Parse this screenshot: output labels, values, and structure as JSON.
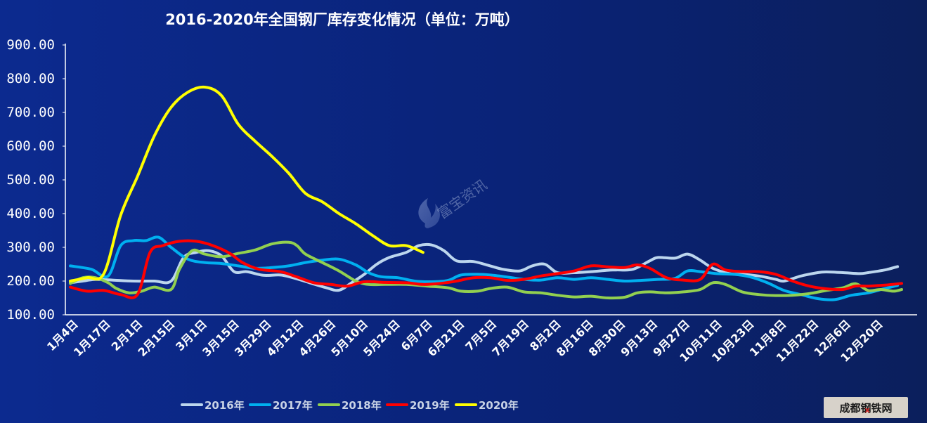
{
  "chart_data": {
    "type": "line",
    "title": "2016-2020年全国钢厂库存变化情况（单位：万吨）",
    "xlabel": "",
    "ylabel": "",
    "ylim": [
      100,
      900
    ],
    "yticks": [
      "900.00",
      "800.00",
      "700.00",
      "600.00",
      "500.00",
      "400.00",
      "300.00",
      "200.00",
      "100.00"
    ],
    "grid": false,
    "legend_position": "bottom",
    "x_tick_labels": [
      "1月4日",
      "1月17日",
      "2月1日",
      "2月15日",
      "3月1日",
      "3月15日",
      "3月29日",
      "4月12日",
      "4月26日",
      "5月10日",
      "5月24日",
      "6月7日",
      "6月21日",
      "7月5日",
      "7月19日",
      "8月2日",
      "8月16日",
      "8月30日",
      "9月13日",
      "9月27日",
      "10月11日",
      "10月23日",
      "11月8日",
      "11月22日",
      "12月6日",
      "12月20日"
    ],
    "series": [
      {
        "name": "2016年",
        "color": "#bcd6ee",
        "points": [
          [
            0,
            195
          ],
          [
            0.3,
            200
          ],
          [
            0.6,
            205
          ],
          [
            1.0,
            203
          ],
          [
            1.5,
            200
          ],
          [
            2.0,
            200
          ],
          [
            2.4,
            200
          ],
          [
            2.7,
            270
          ],
          [
            3.0,
            285
          ],
          [
            3.3,
            290
          ],
          [
            3.6,
            275
          ],
          [
            3.9,
            228
          ],
          [
            4.2,
            228
          ],
          [
            4.6,
            217
          ],
          [
            5.0,
            218
          ],
          [
            5.3,
            210
          ],
          [
            5.7,
            195
          ],
          [
            6.1,
            180
          ],
          [
            6.4,
            173
          ],
          [
            6.7,
            195
          ],
          [
            7.0,
            220
          ],
          [
            7.3,
            250
          ],
          [
            7.6,
            270
          ],
          [
            8.0,
            285
          ],
          [
            8.3,
            305
          ],
          [
            8.6,
            307
          ],
          [
            8.9,
            290
          ],
          [
            9.2,
            260
          ],
          [
            9.6,
            258
          ],
          [
            10.0,
            245
          ],
          [
            10.3,
            235
          ],
          [
            10.7,
            230
          ],
          [
            11.0,
            245
          ],
          [
            11.3,
            250
          ],
          [
            11.6,
            225
          ],
          [
            12.0,
            225
          ],
          [
            12.4,
            228
          ],
          [
            12.8,
            232
          ],
          [
            13.0,
            233
          ],
          [
            13.4,
            235
          ],
          [
            13.8,
            260
          ],
          [
            14.0,
            270
          ],
          [
            14.4,
            268
          ],
          [
            14.7,
            280
          ],
          [
            15.0,
            262
          ],
          [
            15.3,
            238
          ],
          [
            15.7,
            222
          ],
          [
            16.0,
            220
          ],
          [
            16.4,
            215
          ],
          [
            16.8,
            205
          ],
          [
            17.0,
            200
          ],
          [
            17.4,
            215
          ],
          [
            17.8,
            225
          ],
          [
            18.0,
            227
          ],
          [
            18.4,
            225
          ],
          [
            18.8,
            222
          ],
          [
            19.0,
            225
          ],
          [
            19.4,
            233
          ],
          [
            19.7,
            243
          ]
        ]
      },
      {
        "name": "2017年",
        "color": "#00b0f0",
        "points": [
          [
            0,
            245
          ],
          [
            0.5,
            235
          ],
          [
            0.9,
            215
          ],
          [
            1.2,
            305
          ],
          [
            1.5,
            320
          ],
          [
            1.8,
            320
          ],
          [
            2.1,
            330
          ],
          [
            2.4,
            300
          ],
          [
            2.8,
            265
          ],
          [
            3.2,
            255
          ],
          [
            3.6,
            252
          ],
          [
            4.0,
            245
          ],
          [
            4.4,
            238
          ],
          [
            4.8,
            240
          ],
          [
            5.2,
            245
          ],
          [
            5.6,
            255
          ],
          [
            6.0,
            262
          ],
          [
            6.4,
            265
          ],
          [
            6.8,
            248
          ],
          [
            7.1,
            225
          ],
          [
            7.4,
            213
          ],
          [
            7.8,
            210
          ],
          [
            8.2,
            200
          ],
          [
            8.6,
            198
          ],
          [
            9.0,
            202
          ],
          [
            9.3,
            218
          ],
          [
            9.7,
            220
          ],
          [
            10.0,
            218
          ],
          [
            10.4,
            212
          ],
          [
            10.8,
            205
          ],
          [
            11.2,
            203
          ],
          [
            11.6,
            210
          ],
          [
            12.0,
            205
          ],
          [
            12.4,
            210
          ],
          [
            12.8,
            205
          ],
          [
            13.2,
            200
          ],
          [
            13.6,
            202
          ],
          [
            14.0,
            205
          ],
          [
            14.4,
            208
          ],
          [
            14.7,
            230
          ],
          [
            15.0,
            228
          ],
          [
            15.4,
            222
          ],
          [
            15.8,
            220
          ],
          [
            16.2,
            212
          ],
          [
            16.6,
            195
          ],
          [
            17.0,
            172
          ],
          [
            17.4,
            160
          ],
          [
            17.8,
            148
          ],
          [
            18.2,
            145
          ],
          [
            18.6,
            158
          ],
          [
            19.0,
            165
          ],
          [
            19.4,
            178
          ],
          [
            19.7,
            187
          ]
        ]
      },
      {
        "name": "2018年",
        "color": "#92d050",
        "points": [
          [
            0,
            193
          ],
          [
            0.3,
            210
          ],
          [
            0.6,
            210
          ],
          [
            0.9,
            195
          ],
          [
            1.1,
            178
          ],
          [
            1.4,
            165
          ],
          [
            1.7,
            170
          ],
          [
            2.0,
            182
          ],
          [
            2.4,
            175
          ],
          [
            2.6,
            235
          ],
          [
            2.9,
            290
          ],
          [
            3.2,
            280
          ],
          [
            3.6,
            272
          ],
          [
            4.0,
            282
          ],
          [
            4.4,
            292
          ],
          [
            4.8,
            310
          ],
          [
            5.2,
            315
          ],
          [
            5.4,
            305
          ],
          [
            5.6,
            280
          ],
          [
            6.0,
            255
          ],
          [
            6.4,
            230
          ],
          [
            6.8,
            200
          ],
          [
            7.1,
            190
          ],
          [
            7.5,
            190
          ],
          [
            8.0,
            190
          ],
          [
            8.5,
            185
          ],
          [
            9.0,
            180
          ],
          [
            9.3,
            170
          ],
          [
            9.7,
            170
          ],
          [
            10.0,
            178
          ],
          [
            10.4,
            182
          ],
          [
            10.8,
            168
          ],
          [
            11.2,
            165
          ],
          [
            11.6,
            158
          ],
          [
            12.0,
            153
          ],
          [
            12.4,
            155
          ],
          [
            12.8,
            150
          ],
          [
            13.2,
            152
          ],
          [
            13.5,
            165
          ],
          [
            13.8,
            168
          ],
          [
            14.2,
            165
          ],
          [
            14.6,
            168
          ],
          [
            15.0,
            175
          ],
          [
            15.3,
            195
          ],
          [
            15.6,
            190
          ],
          [
            16.0,
            168
          ],
          [
            16.4,
            160
          ],
          [
            16.8,
            157
          ],
          [
            17.2,
            158
          ],
          [
            17.6,
            163
          ],
          [
            18.0,
            172
          ],
          [
            18.4,
            180
          ],
          [
            18.7,
            192
          ],
          [
            19.0,
            172
          ],
          [
            19.3,
            175
          ],
          [
            19.6,
            170
          ],
          [
            19.8,
            175
          ]
        ]
      },
      {
        "name": "2019年",
        "color": "#ff0000",
        "points": [
          [
            0,
            182
          ],
          [
            0.4,
            170
          ],
          [
            0.8,
            172
          ],
          [
            1.2,
            160
          ],
          [
            1.6,
            160
          ],
          [
            1.9,
            285
          ],
          [
            2.2,
            305
          ],
          [
            2.6,
            318
          ],
          [
            3.0,
            318
          ],
          [
            3.4,
            305
          ],
          [
            3.8,
            282
          ],
          [
            4.1,
            255
          ],
          [
            4.5,
            235
          ],
          [
            5.0,
            228
          ],
          [
            5.4,
            212
          ],
          [
            5.8,
            195
          ],
          [
            6.2,
            190
          ],
          [
            6.6,
            185
          ],
          [
            7.0,
            198
          ],
          [
            7.5,
            196
          ],
          [
            8.0,
            195
          ],
          [
            8.4,
            190
          ],
          [
            8.8,
            193
          ],
          [
            9.2,
            200
          ],
          [
            9.6,
            210
          ],
          [
            10.0,
            210
          ],
          [
            10.4,
            202
          ],
          [
            10.8,
            205
          ],
          [
            11.2,
            215
          ],
          [
            11.6,
            222
          ],
          [
            12.0,
            230
          ],
          [
            12.4,
            245
          ],
          [
            12.8,
            242
          ],
          [
            13.2,
            240
          ],
          [
            13.5,
            248
          ],
          [
            13.8,
            238
          ],
          [
            14.2,
            210
          ],
          [
            14.6,
            203
          ],
          [
            15.0,
            205
          ],
          [
            15.3,
            250
          ],
          [
            15.6,
            233
          ],
          [
            16.0,
            228
          ],
          [
            16.4,
            228
          ],
          [
            16.8,
            220
          ],
          [
            17.2,
            200
          ],
          [
            17.6,
            185
          ],
          [
            18.0,
            177
          ],
          [
            18.4,
            175
          ],
          [
            18.7,
            185
          ],
          [
            19.0,
            185
          ],
          [
            19.4,
            188
          ],
          [
            19.8,
            193
          ]
        ]
      },
      {
        "name": "2020年",
        "color": "#ffff00",
        "points": [
          [
            0,
            200
          ],
          [
            0.4,
            210
          ],
          [
            0.8,
            222
          ],
          [
            1.2,
            395
          ],
          [
            1.6,
            510
          ],
          [
            2.0,
            630
          ],
          [
            2.4,
            715
          ],
          [
            2.8,
            760
          ],
          [
            3.2,
            775
          ],
          [
            3.6,
            750
          ],
          [
            4.0,
            665
          ],
          [
            4.4,
            615
          ],
          [
            4.8,
            570
          ],
          [
            5.2,
            520
          ],
          [
            5.6,
            460
          ],
          [
            6.0,
            435
          ],
          [
            6.4,
            400
          ],
          [
            6.8,
            370
          ],
          [
            7.2,
            335
          ],
          [
            7.6,
            305
          ],
          [
            8.0,
            305
          ],
          [
            8.4,
            285
          ]
        ]
      }
    ]
  },
  "watermark": {
    "text": "富宝资讯",
    "icon": "flame-logo-icon"
  },
  "stamp": {
    "text": "成都钢铁网"
  }
}
